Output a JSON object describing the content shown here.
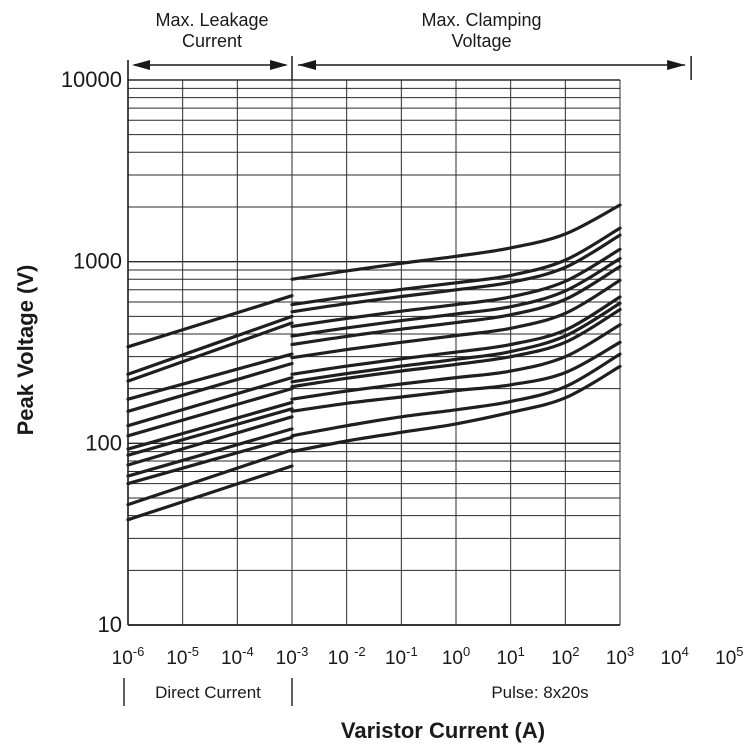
{
  "chart_data": {
    "type": "line",
    "xscale": "log",
    "yscale": "log",
    "xlabel": "Varistor Current (A)",
    "ylabel": "Peak Voltage (V)",
    "xlim": [
      1e-06,
      100000
    ],
    "ylim": [
      10,
      10000
    ],
    "grid": true,
    "x_ticks": [
      {
        "base": "10",
        "exp": "-6",
        "value": 1e-06
      },
      {
        "base": "10",
        "exp": "-5",
        "value": 1e-05
      },
      {
        "base": "10",
        "exp": "-4",
        "value": 0.0001
      },
      {
        "base": "10",
        "exp": "-3",
        "value": 0.001
      },
      {
        "base": "10 ",
        "exp": "-2",
        "value": 0.01
      },
      {
        "base": "10",
        "exp": "-1",
        "value": 0.1
      },
      {
        "base": "10",
        "exp": "0",
        "value": 1
      },
      {
        "base": "10",
        "exp": "1",
        "value": 10
      },
      {
        "base": "10",
        "exp": "2",
        "value": 100
      },
      {
        "base": "10",
        "exp": "3",
        "value": 1000
      },
      {
        "base": "10",
        "exp": "4",
        "value": 10000
      },
      {
        "base": "10",
        "exp": "5",
        "value": 100000
      }
    ],
    "y_ticks": [
      {
        "label": "10",
        "value": 10
      },
      {
        "label": "100",
        "value": 100
      },
      {
        "label": "1000",
        "value": 1000
      },
      {
        "label": "10000",
        "value": 10000
      }
    ],
    "annotations": {
      "leakage_label": [
        "Max. Leakage",
        "Current"
      ],
      "clamping_label": [
        "Max. Clamping",
        "Voltage"
      ],
      "leakage_range": [
        1e-06,
        0.001
      ],
      "clamping_range": [
        0.001,
        20000
      ]
    },
    "regions": [
      {
        "label": "Direct Current",
        "range": [
          1e-06,
          0.001
        ]
      },
      {
        "label": "Pulse: 8x20s",
        "range": [
          0.001,
          100000
        ]
      }
    ],
    "series": [
      {
        "leakage": [
          [
            1e-06,
            38
          ],
          [
            0.001,
            75
          ]
        ],
        "clamping": [
          [
            0.001,
            90
          ],
          [
            0.01,
            103
          ],
          [
            0.1,
            115
          ],
          [
            1,
            128
          ],
          [
            10,
            148
          ],
          [
            100,
            178
          ],
          [
            1000,
            265
          ]
        ]
      },
      {
        "leakage": [
          [
            1e-06,
            46
          ],
          [
            0.001,
            92
          ]
        ],
        "clamping": [
          [
            0.001,
            110
          ],
          [
            0.01,
            125
          ],
          [
            0.1,
            140
          ],
          [
            1,
            153
          ],
          [
            10,
            170
          ],
          [
            100,
            205
          ],
          [
            1000,
            310
          ]
        ]
      },
      {
        "leakage": [
          [
            1e-06,
            60
          ],
          [
            0.001,
            108
          ]
        ],
        "clamping": [
          [
            0.001,
            150
          ],
          [
            0.01,
            166
          ],
          [
            0.1,
            180
          ],
          [
            1,
            195
          ],
          [
            10,
            210
          ],
          [
            100,
            245
          ],
          [
            1000,
            360
          ]
        ]
      },
      {
        "leakage": [
          [
            1e-06,
            66
          ],
          [
            0.001,
            120
          ]
        ],
        "clamping": [
          [
            0.001,
            175
          ],
          [
            0.01,
            194
          ],
          [
            0.1,
            212
          ],
          [
            1,
            230
          ],
          [
            10,
            250
          ],
          [
            100,
            300
          ],
          [
            1000,
            450
          ]
        ]
      },
      {
        "leakage": [
          [
            1e-06,
            76
          ],
          [
            0.001,
            140
          ]
        ],
        "clamping": [
          [
            0.001,
            205
          ],
          [
            0.01,
            228
          ],
          [
            0.1,
            250
          ],
          [
            1,
            272
          ],
          [
            10,
            300
          ],
          [
            100,
            360
          ],
          [
            1000,
            545
          ]
        ]
      },
      {
        "leakage": [
          [
            1e-06,
            86
          ],
          [
            0.001,
            155
          ]
        ],
        "clamping": [
          [
            0.001,
            218
          ],
          [
            0.01,
            242
          ],
          [
            0.1,
            266
          ],
          [
            1,
            290
          ],
          [
            10,
            320
          ],
          [
            100,
            390
          ],
          [
            1000,
            590
          ]
        ]
      },
      {
        "leakage": [
          [
            1e-06,
            93
          ],
          [
            0.001,
            168
          ]
        ],
        "clamping": [
          [
            0.001,
            240
          ],
          [
            0.01,
            266
          ],
          [
            0.1,
            292
          ],
          [
            1,
            318
          ],
          [
            10,
            350
          ],
          [
            100,
            420
          ],
          [
            1000,
            640
          ]
        ]
      },
      {
        "leakage": [
          [
            1e-06,
            110
          ],
          [
            0.001,
            200
          ]
        ],
        "clamping": [
          [
            0.001,
            296
          ],
          [
            0.01,
            328
          ],
          [
            0.1,
            360
          ],
          [
            1,
            392
          ],
          [
            10,
            430
          ],
          [
            100,
            520
          ],
          [
            1000,
            790
          ]
        ]
      },
      {
        "leakage": [
          [
            1e-06,
            125
          ],
          [
            0.001,
            230
          ]
        ],
        "clamping": [
          [
            0.001,
            350
          ],
          [
            0.01,
            388
          ],
          [
            0.1,
            425
          ],
          [
            1,
            462
          ],
          [
            10,
            510
          ],
          [
            100,
            620
          ],
          [
            1000,
            940
          ]
        ]
      },
      {
        "leakage": [
          [
            1e-06,
            150
          ],
          [
            0.001,
            275
          ]
        ],
        "clamping": [
          [
            0.001,
            390
          ],
          [
            0.01,
            432
          ],
          [
            0.1,
            474
          ],
          [
            1,
            515
          ],
          [
            10,
            565
          ],
          [
            100,
            690
          ],
          [
            1000,
            1040
          ]
        ]
      },
      {
        "leakage": [
          [
            1e-06,
            175
          ],
          [
            0.001,
            310
          ]
        ],
        "clamping": [
          [
            0.001,
            440
          ],
          [
            0.01,
            487
          ],
          [
            0.1,
            534
          ],
          [
            1,
            580
          ],
          [
            10,
            640
          ],
          [
            100,
            780
          ],
          [
            1000,
            1170
          ]
        ]
      },
      {
        "leakage": [
          [
            1e-06,
            220
          ],
          [
            0.001,
            460
          ]
        ],
        "clamping": [
          [
            0.001,
            530
          ],
          [
            0.01,
            587
          ],
          [
            0.1,
            643
          ],
          [
            1,
            700
          ],
          [
            10,
            770
          ],
          [
            100,
            930
          ],
          [
            1000,
            1400
          ]
        ]
      },
      {
        "leakage": [
          [
            1e-06,
            240
          ],
          [
            0.001,
            500
          ]
        ],
        "clamping": [
          [
            0.001,
            580
          ],
          [
            0.01,
            642
          ],
          [
            0.1,
            704
          ],
          [
            1,
            765
          ],
          [
            10,
            840
          ],
          [
            100,
            1020
          ],
          [
            1000,
            1530
          ]
        ]
      },
      {
        "leakage": [
          [
            1e-06,
            340
          ],
          [
            0.001,
            650
          ]
        ],
        "clamping": [
          [
            0.001,
            800
          ],
          [
            0.01,
            890
          ],
          [
            0.1,
            980
          ],
          [
            1,
            1070
          ],
          [
            10,
            1190
          ],
          [
            100,
            1420
          ],
          [
            1000,
            2050
          ]
        ]
      }
    ]
  }
}
